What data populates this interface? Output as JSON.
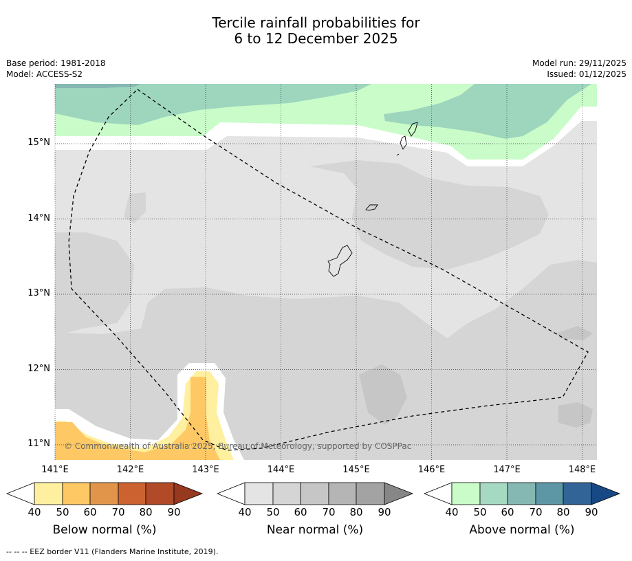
{
  "title": {
    "line1": "Tercile rainfall probabilities for",
    "line2": "6 to 12 December 2025"
  },
  "meta": {
    "base_period": "Base period: 1981-2018",
    "model": "Model: ACCESS-S2",
    "model_run": "Model run: 29/11/2025",
    "issued": "Issued: 01/12/2025"
  },
  "map": {
    "lat_labels": [
      "15°N",
      "14°N",
      "13°N",
      "12°N",
      "11°N"
    ],
    "lon_labels": [
      "141°E",
      "142°E",
      "143°E",
      "144°E",
      "145°E",
      "146°E",
      "147°E",
      "148°E"
    ],
    "credit": "© Commonwealth of Australia 2025, Bureau of Meteorology, supported by COSPPac",
    "colors": {
      "near_40": "#e4e4e4",
      "near_50": "#d5d5d5",
      "near_60": "#c6c6c6",
      "above_40": "#c9fcc9",
      "above_50": "#9dd5bd",
      "above_60": "#85b8b3",
      "below_40": "#fff0a0",
      "below_50": "#fec965",
      "white": "#ffffff"
    }
  },
  "colorbars": [
    {
      "label": "Below normal (%)",
      "ticks": [
        "40",
        "50",
        "60",
        "70",
        "80",
        "90"
      ],
      "colors": [
        "#fff0a0",
        "#fec965",
        "#e1954a",
        "#cc6230",
        "#b04a27",
        "#96391e"
      ]
    },
    {
      "label": "Near normal (%)",
      "ticks": [
        "40",
        "50",
        "60",
        "70",
        "80",
        "90"
      ],
      "colors": [
        "#e4e4e4",
        "#d5d5d5",
        "#c6c6c6",
        "#b5b5b5",
        "#a3a3a3",
        "#878787"
      ]
    },
    {
      "label": "Above normal (%)",
      "ticks": [
        "40",
        "50",
        "60",
        "70",
        "80",
        "90"
      ],
      "colors": [
        "#c9fcc9",
        "#a6d9c2",
        "#85b8b3",
        "#5d97a5",
        "#326497",
        "#184985"
      ]
    }
  ],
  "footer": "--  --  -- EEZ border V11 (Flanders Marine Institute, 2019)."
}
